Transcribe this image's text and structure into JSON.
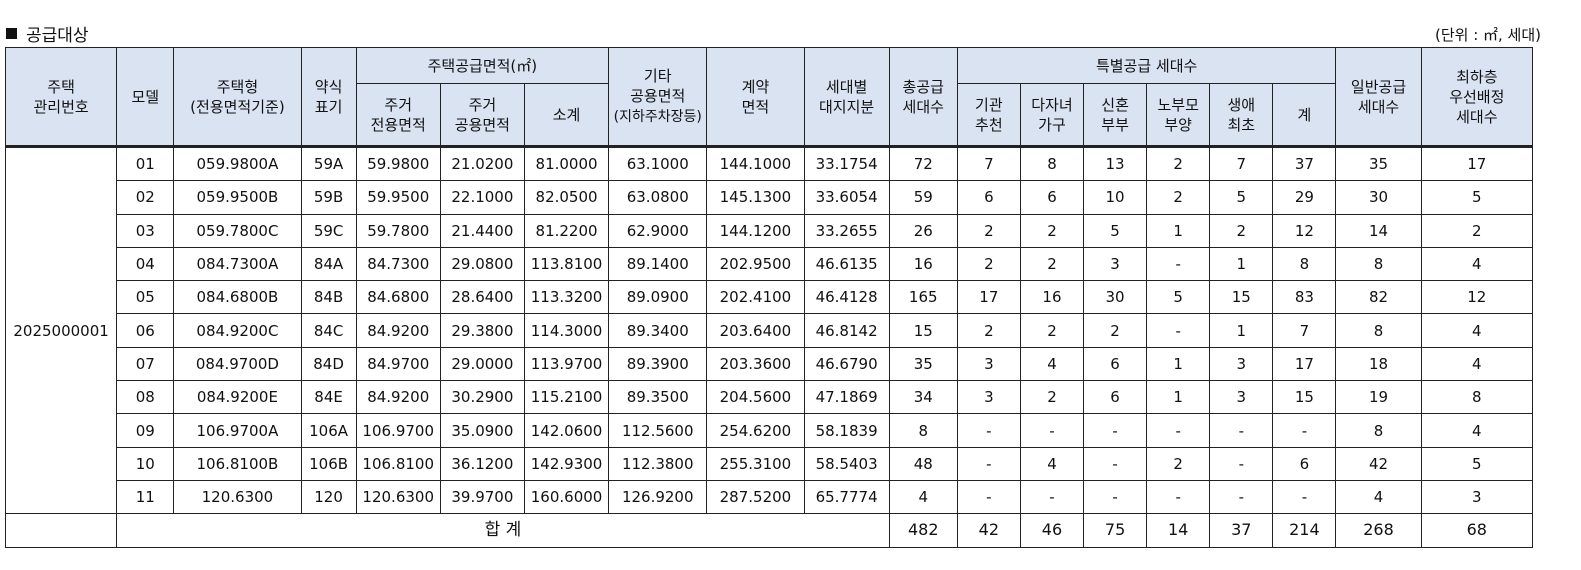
{
  "section_title": "공급대상",
  "unit_note": "(단위 : ㎡, 세대)",
  "headers": {
    "house_mgmt_no": [
      "주택",
      "관리번호"
    ],
    "model": "모델",
    "house_type": [
      "주택형",
      "(전용면적기준)"
    ],
    "abbr": [
      "약식",
      "표기"
    ],
    "supply_area_group": "주택공급면적(㎡)",
    "exclusive": [
      "주거",
      "전용면적"
    ],
    "common": [
      "주거",
      "공용면적"
    ],
    "subtotal": "소계",
    "other_common": [
      "기타",
      "공용면적",
      "(지하주차장등)"
    ],
    "contract_area": [
      "계약",
      "면적"
    ],
    "land_share": [
      "세대별",
      "대지지분"
    ],
    "total_supply": [
      "총공급",
      "세대수"
    ],
    "special_group": "특별공급 세대수",
    "institution": [
      "기관",
      "추천"
    ],
    "multi_child": [
      "다자녀",
      "가구"
    ],
    "newlywed": [
      "신혼",
      "부부"
    ],
    "elderly_parent": [
      "노부모",
      "부양"
    ],
    "first_time": [
      "생애",
      "최초"
    ],
    "sum": "계",
    "general": [
      "일반공급",
      "세대수"
    ],
    "lowest_floor": [
      "최하층",
      "우선배정",
      "세대수"
    ]
  },
  "house_mgmt_no": "2025000001",
  "rows": [
    {
      "model": "01",
      "type": "059.9800A",
      "abbr": "59A",
      "excl": "59.9800",
      "common": "21.0200",
      "subtotal": "81.0000",
      "other": "63.1000",
      "contract": "144.1000",
      "land": "33.1754",
      "total": "72",
      "inst": "7",
      "multi": "8",
      "newly": "13",
      "elder": "2",
      "first": "7",
      "sum": "37",
      "general": "35",
      "lowest": "17"
    },
    {
      "model": "02",
      "type": "059.9500B",
      "abbr": "59B",
      "excl": "59.9500",
      "common": "22.1000",
      "subtotal": "82.0500",
      "other": "63.0800",
      "contract": "145.1300",
      "land": "33.6054",
      "total": "59",
      "inst": "6",
      "multi": "6",
      "newly": "10",
      "elder": "2",
      "first": "5",
      "sum": "29",
      "general": "30",
      "lowest": "5"
    },
    {
      "model": "03",
      "type": "059.7800C",
      "abbr": "59C",
      "excl": "59.7800",
      "common": "21.4400",
      "subtotal": "81.2200",
      "other": "62.9000",
      "contract": "144.1200",
      "land": "33.2655",
      "total": "26",
      "inst": "2",
      "multi": "2",
      "newly": "5",
      "elder": "1",
      "first": "2",
      "sum": "12",
      "general": "14",
      "lowest": "2"
    },
    {
      "model": "04",
      "type": "084.7300A",
      "abbr": "84A",
      "excl": "84.7300",
      "common": "29.0800",
      "subtotal": "113.8100",
      "other": "89.1400",
      "contract": "202.9500",
      "land": "46.6135",
      "total": "16",
      "inst": "2",
      "multi": "2",
      "newly": "3",
      "elder": "-",
      "first": "1",
      "sum": "8",
      "general": "8",
      "lowest": "4"
    },
    {
      "model": "05",
      "type": "084.6800B",
      "abbr": "84B",
      "excl": "84.6800",
      "common": "28.6400",
      "subtotal": "113.3200",
      "other": "89.0900",
      "contract": "202.4100",
      "land": "46.4128",
      "total": "165",
      "inst": "17",
      "multi": "16",
      "newly": "30",
      "elder": "5",
      "first": "15",
      "sum": "83",
      "general": "82",
      "lowest": "12"
    },
    {
      "model": "06",
      "type": "084.9200C",
      "abbr": "84C",
      "excl": "84.9200",
      "common": "29.3800",
      "subtotal": "114.3000",
      "other": "89.3400",
      "contract": "203.6400",
      "land": "46.8142",
      "total": "15",
      "inst": "2",
      "multi": "2",
      "newly": "2",
      "elder": "-",
      "first": "1",
      "sum": "7",
      "general": "8",
      "lowest": "4"
    },
    {
      "model": "07",
      "type": "084.9700D",
      "abbr": "84D",
      "excl": "84.9700",
      "common": "29.0000",
      "subtotal": "113.9700",
      "other": "89.3900",
      "contract": "203.3600",
      "land": "46.6790",
      "total": "35",
      "inst": "3",
      "multi": "4",
      "newly": "6",
      "elder": "1",
      "first": "3",
      "sum": "17",
      "general": "18",
      "lowest": "4"
    },
    {
      "model": "08",
      "type": "084.9200E",
      "abbr": "84E",
      "excl": "84.9200",
      "common": "30.2900",
      "subtotal": "115.2100",
      "other": "89.3500",
      "contract": "204.5600",
      "land": "47.1869",
      "total": "34",
      "inst": "3",
      "multi": "2",
      "newly": "6",
      "elder": "1",
      "first": "3",
      "sum": "15",
      "general": "19",
      "lowest": "8"
    },
    {
      "model": "09",
      "type": "106.9700A",
      "abbr": "106A",
      "excl": "106.9700",
      "common": "35.0900",
      "subtotal": "142.0600",
      "other": "112.5600",
      "contract": "254.6200",
      "land": "58.1839",
      "total": "8",
      "inst": "-",
      "multi": "-",
      "newly": "-",
      "elder": "-",
      "first": "-",
      "sum": "-",
      "general": "8",
      "lowest": "4"
    },
    {
      "model": "10",
      "type": "106.8100B",
      "abbr": "106B",
      "excl": "106.8100",
      "common": "36.1200",
      "subtotal": "142.9300",
      "other": "112.3800",
      "contract": "255.3100",
      "land": "58.5403",
      "total": "48",
      "inst": "-",
      "multi": "4",
      "newly": "-",
      "elder": "2",
      "first": "-",
      "sum": "6",
      "general": "42",
      "lowest": "5"
    },
    {
      "model": "11",
      "type": "120.6300",
      "abbr": "120",
      "excl": "120.6300",
      "common": "39.9700",
      "subtotal": "160.6000",
      "other": "126.9200",
      "contract": "287.5200",
      "land": "65.7774",
      "total": "4",
      "inst": "-",
      "multi": "-",
      "newly": "-",
      "elder": "-",
      "first": "-",
      "sum": "-",
      "general": "4",
      "lowest": "3"
    }
  ],
  "totals": {
    "label": "합 계",
    "total": "482",
    "inst": "42",
    "multi": "46",
    "newly": "75",
    "elder": "14",
    "first": "37",
    "sum": "214",
    "general": "268",
    "lowest": "68"
  }
}
